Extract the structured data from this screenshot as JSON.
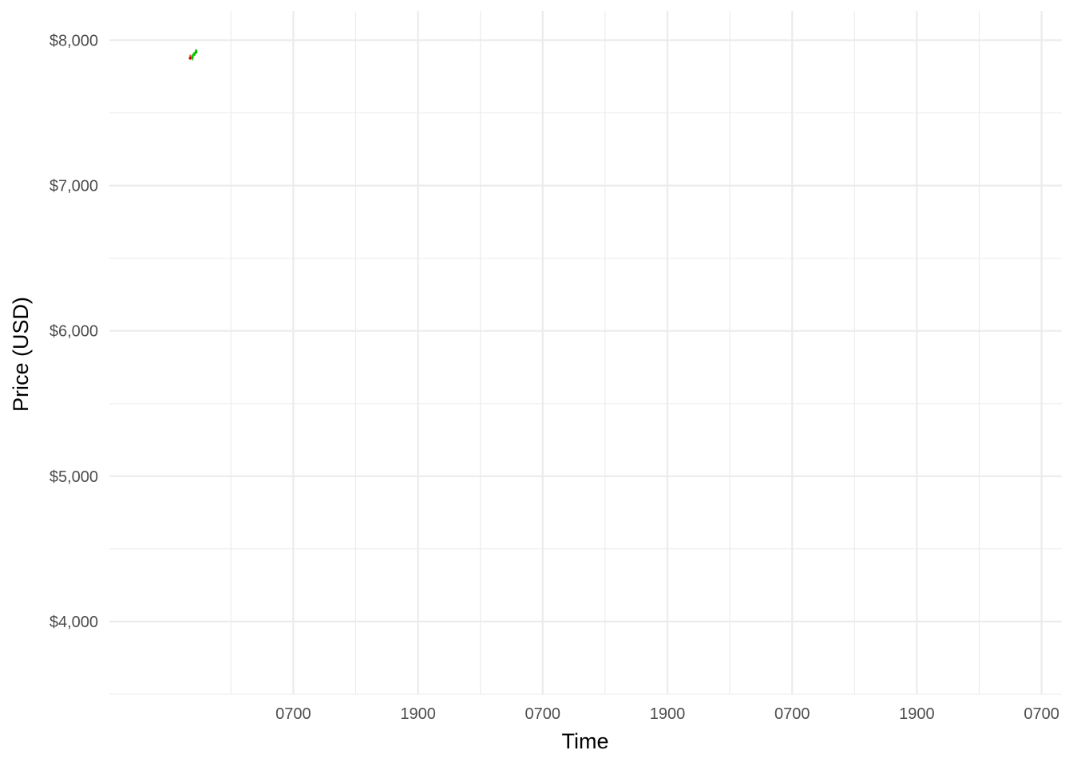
{
  "chart_data": {
    "type": "candlestick",
    "title": "",
    "xlabel": "Time",
    "ylabel": "Price (USD)",
    "ylim": [
      3500,
      8200
    ],
    "xlim": [
      -2.9,
      27.65
    ],
    "x_unit": "hours",
    "y_ticks": [
      {
        "value": 4000,
        "label": "$4,000"
      },
      {
        "value": 5000,
        "label": "$5,000"
      },
      {
        "value": 6000,
        "label": "$6,000"
      },
      {
        "value": 7000,
        "label": "$7,000"
      },
      {
        "value": 8000,
        "label": "$8,000"
      }
    ],
    "y_minor_ticks": [
      3500,
      4500,
      5500,
      6500,
      7500
    ],
    "x_ticks": [
      {
        "value": 3,
        "label": "0700"
      },
      {
        "value": 7,
        "label": "1900"
      },
      {
        "value": 11,
        "label": "0700"
      },
      {
        "value": 15,
        "label": "1900"
      },
      {
        "value": 19,
        "label": "0700"
      },
      {
        "value": 23,
        "label": "1900"
      },
      {
        "value": 27,
        "label": "0700"
      }
    ],
    "x_minor_ticks": [
      1,
      5,
      9,
      13,
      17,
      21,
      25
    ],
    "grid": true,
    "colors": {
      "up": "#00c000",
      "down": "#e00000",
      "grid": "#ebebeb"
    },
    "candles": [
      {
        "x": -0.31,
        "open": 7885,
        "high": 7900,
        "low": 7865,
        "close": 7870
      },
      {
        "x": -0.24,
        "open": 7870,
        "high": 7905,
        "low": 7860,
        "close": 7895
      },
      {
        "x": -0.18,
        "open": 7895,
        "high": 7920,
        "low": 7890,
        "close": 7912
      },
      {
        "x": -0.12,
        "open": 7910,
        "high": 7940,
        "low": 7905,
        "close": 7932
      }
    ]
  }
}
